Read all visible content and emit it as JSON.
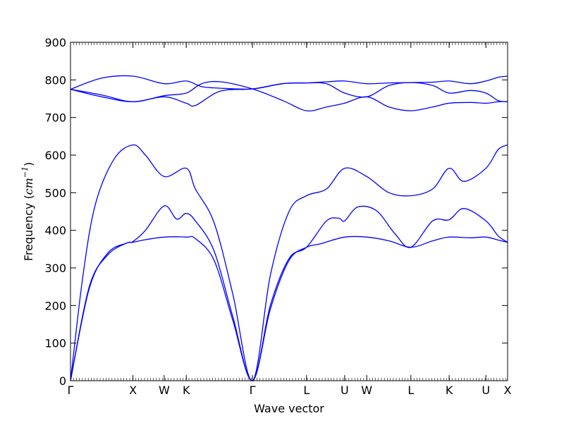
{
  "chart_data": {
    "type": "line",
    "title": "",
    "xlabel": "Wave vector",
    "ylabel_text": "Frequency (",
    "ylabel_unit": "cm",
    "ylabel_exp": "−1",
    "ylabel_close": ")",
    "ylim": [
      0,
      900
    ],
    "yticks": [
      0,
      100,
      200,
      300,
      400,
      500,
      600,
      700,
      800,
      900
    ],
    "xlim": [
      0,
      7.0
    ],
    "xticks": [
      {
        "label": "Γ",
        "x": 0.0
      },
      {
        "label": "X",
        "x": 1.0
      },
      {
        "label": "W",
        "x": 1.5
      },
      {
        "label": "K",
        "x": 1.854
      },
      {
        "label": "Γ",
        "x": 2.914
      },
      {
        "label": "L",
        "x": 3.78
      },
      {
        "label": "U",
        "x": 4.39
      },
      {
        "label": "W",
        "x": 4.744
      },
      {
        "label": "L",
        "x": 5.451
      },
      {
        "label": "K",
        "x": 6.064
      },
      {
        "label": "U",
        "x": 6.652
      },
      {
        "label": "X",
        "x": 7.0
      }
    ],
    "line_color": "#0000ff",
    "grid": false,
    "series": [
      {
        "values": [
          [
            0,
            0
          ],
          [
            0.3,
            250
          ],
          [
            0.6,
            335
          ],
          [
            0.9,
            366
          ],
          [
            1.0,
            368
          ],
          [
            1.2,
            375
          ],
          [
            1.5,
            382
          ],
          [
            1.854,
            382
          ],
          [
            2.0,
            378
          ],
          [
            2.3,
            320
          ],
          [
            2.6,
            160
          ],
          [
            2.914,
            0
          ],
          [
            3.2,
            190
          ],
          [
            3.5,
            320
          ],
          [
            3.78,
            355
          ],
          [
            4.0,
            364
          ],
          [
            4.39,
            382
          ],
          [
            4.744,
            382
          ],
          [
            5.1,
            372
          ],
          [
            5.451,
            355
          ],
          [
            5.8,
            372
          ],
          [
            6.064,
            382
          ],
          [
            6.4,
            380
          ],
          [
            6.652,
            382
          ],
          [
            6.85,
            374
          ],
          [
            7.0,
            368
          ]
        ]
      },
      {
        "values": [
          [
            0,
            0
          ],
          [
            0.3,
            245
          ],
          [
            0.6,
            340
          ],
          [
            0.9,
            366
          ],
          [
            1.0,
            370
          ],
          [
            1.2,
            400
          ],
          [
            1.5,
            465
          ],
          [
            1.7,
            430
          ],
          [
            1.854,
            445
          ],
          [
            2.0,
            425
          ],
          [
            2.3,
            345
          ],
          [
            2.6,
            170
          ],
          [
            2.914,
            0
          ],
          [
            3.2,
            200
          ],
          [
            3.5,
            325
          ],
          [
            3.78,
            355
          ],
          [
            4.1,
            425
          ],
          [
            4.3,
            432
          ],
          [
            4.39,
            425
          ],
          [
            4.6,
            462
          ],
          [
            4.9,
            452
          ],
          [
            5.2,
            390
          ],
          [
            5.451,
            355
          ],
          [
            5.8,
            425
          ],
          [
            6.064,
            428
          ],
          [
            6.3,
            458
          ],
          [
            6.652,
            425
          ],
          [
            6.85,
            385
          ],
          [
            7.0,
            368
          ]
        ]
      },
      {
        "values": [
          [
            0,
            0
          ],
          [
            0.2,
            280
          ],
          [
            0.4,
            470
          ],
          [
            0.7,
            590
          ],
          [
            1.0,
            627
          ],
          [
            1.2,
            600
          ],
          [
            1.5,
            543
          ],
          [
            1.854,
            565
          ],
          [
            2.0,
            510
          ],
          [
            2.3,
            420
          ],
          [
            2.6,
            230
          ],
          [
            2.914,
            0
          ],
          [
            3.2,
            280
          ],
          [
            3.5,
            450
          ],
          [
            3.78,
            492
          ],
          [
            4.1,
            510
          ],
          [
            4.39,
            565
          ],
          [
            4.744,
            543
          ],
          [
            5.1,
            500
          ],
          [
            5.451,
            492
          ],
          [
            5.8,
            510
          ],
          [
            6.064,
            565
          ],
          [
            6.3,
            530
          ],
          [
            6.652,
            565
          ],
          [
            6.85,
            615
          ],
          [
            7.0,
            627
          ]
        ]
      },
      {
        "values": [
          [
            0,
            775
          ],
          [
            0.5,
            755
          ],
          [
            1.0,
            742
          ],
          [
            1.5,
            755
          ],
          [
            1.854,
            738
          ],
          [
            2.0,
            732
          ],
          [
            2.4,
            770
          ],
          [
            2.914,
            776
          ],
          [
            3.4,
            790
          ],
          [
            3.78,
            792
          ],
          [
            4.1,
            790
          ],
          [
            4.39,
            765
          ],
          [
            4.744,
            755
          ],
          [
            5.1,
            785
          ],
          [
            5.451,
            793
          ],
          [
            5.8,
            785
          ],
          [
            6.064,
            765
          ],
          [
            6.4,
            772
          ],
          [
            6.652,
            765
          ],
          [
            6.85,
            745
          ],
          [
            7.0,
            742
          ]
        ]
      },
      {
        "values": [
          [
            0,
            775
          ],
          [
            0.5,
            760
          ],
          [
            1.0,
            742
          ],
          [
            1.5,
            758
          ],
          [
            1.854,
            765
          ],
          [
            2.1,
            790
          ],
          [
            2.4,
            795
          ],
          [
            2.914,
            776
          ],
          [
            3.4,
            745
          ],
          [
            3.78,
            718
          ],
          [
            4.1,
            728
          ],
          [
            4.39,
            738
          ],
          [
            4.744,
            755
          ],
          [
            5.1,
            728
          ],
          [
            5.451,
            718
          ],
          [
            5.8,
            728
          ],
          [
            6.064,
            738
          ],
          [
            6.4,
            740
          ],
          [
            6.652,
            738
          ],
          [
            6.85,
            742
          ],
          [
            7.0,
            742
          ]
        ]
      },
      {
        "values": [
          [
            0,
            775
          ],
          [
            0.5,
            805
          ],
          [
            1.0,
            810
          ],
          [
            1.5,
            790
          ],
          [
            1.854,
            797
          ],
          [
            2.1,
            782
          ],
          [
            2.4,
            778
          ],
          [
            2.914,
            776
          ],
          [
            3.4,
            790
          ],
          [
            3.78,
            792
          ],
          [
            4.1,
            795
          ],
          [
            4.39,
            797
          ],
          [
            4.744,
            790
          ],
          [
            5.1,
            792
          ],
          [
            5.451,
            793
          ],
          [
            5.8,
            794
          ],
          [
            6.064,
            797
          ],
          [
            6.4,
            790
          ],
          [
            6.652,
            797
          ],
          [
            6.85,
            807
          ],
          [
            7.0,
            810
          ]
        ]
      }
    ]
  }
}
